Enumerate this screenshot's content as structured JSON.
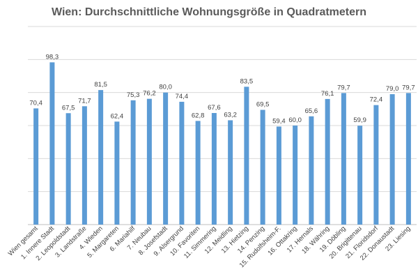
{
  "chart_data": {
    "type": "bar",
    "title": "Wien: Durchschnittliche Wohnungsgröße in Quadratmetern",
    "xlabel": "",
    "ylabel": "",
    "ylim": [
      0,
      120
    ],
    "grid": true,
    "legend": "none",
    "bar_color": "#5b9bd5",
    "categories": [
      "Wien gesamt",
      "1. Innere Stadt",
      "2. Leopoldstadt",
      "3. Landstraße",
      "4. Wieden",
      "5. Margareten",
      "6. Mariahilf",
      "7. Neubau",
      "8. Josefstadt",
      "9. Alsergrund",
      "10. Favoriten",
      "11. Simmering",
      "12. Meidling",
      "13. Hietzing",
      "14. Penzing",
      "15. Rudolfsheim-F.",
      "16. Ottakring",
      "17. Hernals",
      "18. Währing",
      "19. Döbling",
      "20. Brigittenau",
      "21. Floridsdorf",
      "22. Donaustadt",
      "23. Liesing"
    ],
    "values": [
      70.4,
      98.3,
      67.5,
      71.7,
      81.5,
      62.4,
      75.3,
      76.2,
      80.0,
      74.4,
      62.8,
      67.6,
      63.2,
      83.5,
      69.5,
      59.4,
      60.0,
      65.6,
      76.1,
      79.7,
      59.9,
      72.4,
      79.0,
      79.7
    ],
    "value_labels": [
      "70,4",
      "98,3",
      "67,5",
      "71,7",
      "81,5",
      "62,4",
      "75,3",
      "76,2",
      "80,0",
      "74,4",
      "62,8",
      "67,6",
      "63,2",
      "83,5",
      "69,5",
      "59,4",
      "60,0",
      "65,6",
      "76,1",
      "79,7",
      "59,9",
      "72,4",
      "79,0",
      "79,7"
    ]
  }
}
